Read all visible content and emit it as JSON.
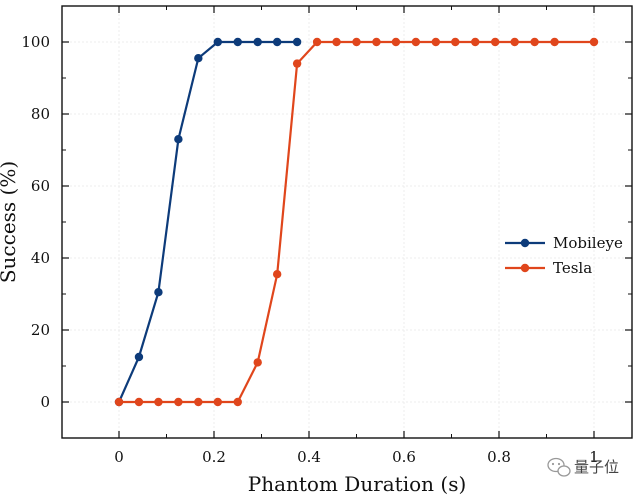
{
  "chart_data": {
    "type": "line",
    "xlabel": "Phantom Duration (s)",
    "ylabel": "Success (%)",
    "xlim": [
      -0.12,
      1.08
    ],
    "ylim": [
      -10,
      110
    ],
    "xticks": [
      0,
      0.2,
      0.4,
      0.6,
      0.8,
      1
    ],
    "xtick_labels": [
      "0",
      "0.2",
      "0.4",
      "0.6",
      "0.8",
      "1"
    ],
    "yticks": [
      0,
      20,
      40,
      60,
      80,
      100
    ],
    "ytick_labels": [
      "0",
      "20",
      "40",
      "60",
      "80",
      "100"
    ],
    "grid": true,
    "legend_position": "right",
    "series": [
      {
        "name": "Mobileye",
        "color": "#0d3b7a",
        "x": [
          0,
          0.042,
          0.083,
          0.125,
          0.167,
          0.208,
          0.25,
          0.292,
          0.333,
          0.375
        ],
        "y": [
          0,
          12.5,
          30.5,
          73,
          95.5,
          100,
          100,
          100,
          100,
          100
        ]
      },
      {
        "name": "Tesla",
        "color": "#e0461c",
        "x": [
          0,
          0.042,
          0.083,
          0.125,
          0.167,
          0.208,
          0.25,
          0.292,
          0.333,
          0.375,
          0.417,
          0.458,
          0.5,
          0.542,
          0.583,
          0.625,
          0.667,
          0.708,
          0.75,
          0.792,
          0.833,
          0.875,
          0.917,
          1
        ],
        "y": [
          0,
          0,
          0,
          0,
          0,
          0,
          0,
          11,
          35.5,
          94,
          100,
          100,
          100,
          100,
          100,
          100,
          100,
          100,
          100,
          100,
          100,
          100,
          100,
          100
        ]
      }
    ]
  },
  "watermark": {
    "text": "量子位"
  }
}
